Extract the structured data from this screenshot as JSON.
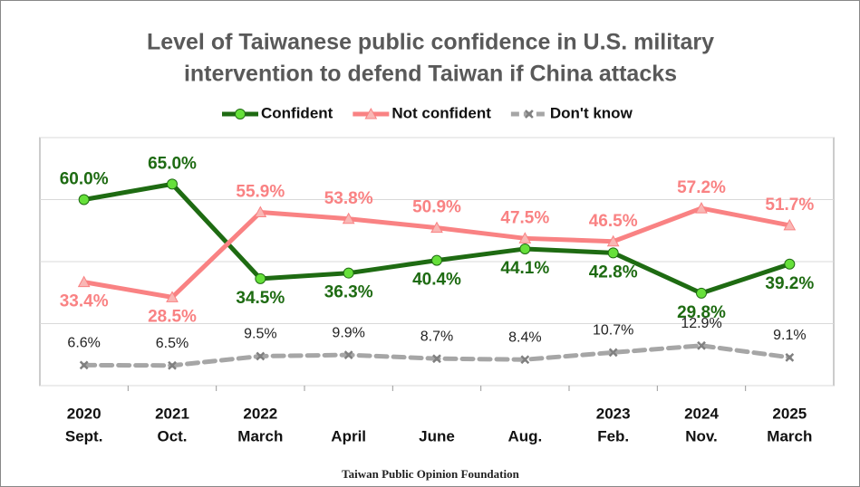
{
  "chart_data": {
    "type": "line",
    "title": [
      "Level of Taiwanese public confidence in U.S. military",
      "intervention to defend Taiwan if China attacks"
    ],
    "categories": [
      [
        "2020",
        "Sept."
      ],
      [
        "2021",
        "Oct."
      ],
      [
        "2022",
        "March"
      ],
      [
        "April"
      ],
      [
        "June"
      ],
      [
        "Aug."
      ],
      [
        "2023",
        "Feb."
      ],
      [
        "2024",
        "Nov."
      ],
      [
        "2025",
        "March"
      ]
    ],
    "series": [
      {
        "name": "Confident",
        "color": "#1e6b12",
        "marker": "#66e03a",
        "values": [
          60.0,
          65.0,
          34.5,
          36.3,
          40.4,
          44.1,
          42.8,
          29.8,
          39.2
        ],
        "value_labels": [
          "60.0%",
          "65.0%",
          "34.5%",
          "36.3%",
          "40.4%",
          "44.1%",
          "42.8%",
          "29.8%",
          "39.2%"
        ]
      },
      {
        "name": "Not confident",
        "color": "#f98283",
        "marker": "#f9b7b5",
        "values": [
          33.4,
          28.5,
          55.9,
          53.8,
          50.9,
          47.5,
          46.5,
          57.2,
          51.7
        ],
        "value_labels": [
          "33.4%",
          "28.5%",
          "55.9%",
          "53.8%",
          "50.9%",
          "47.5%",
          "46.5%",
          "57.2%",
          "51.7%"
        ]
      },
      {
        "name": "Don't know",
        "color": "#a6a6a6",
        "marker": "#808080",
        "values": [
          6.6,
          6.5,
          9.5,
          9.9,
          8.7,
          8.4,
          10.7,
          12.9,
          9.1
        ],
        "value_labels": [
          "6.6%",
          "6.5%",
          "9.5%",
          "9.9%",
          "8.7%",
          "8.4%",
          "10.7%",
          "12.9%",
          "9.1%"
        ]
      }
    ],
    "ylim": [
      0,
      80
    ],
    "yticks": [
      0,
      20,
      40,
      60,
      80
    ],
    "grid": true,
    "source": "Taiwan Public Opinion Foundation"
  }
}
